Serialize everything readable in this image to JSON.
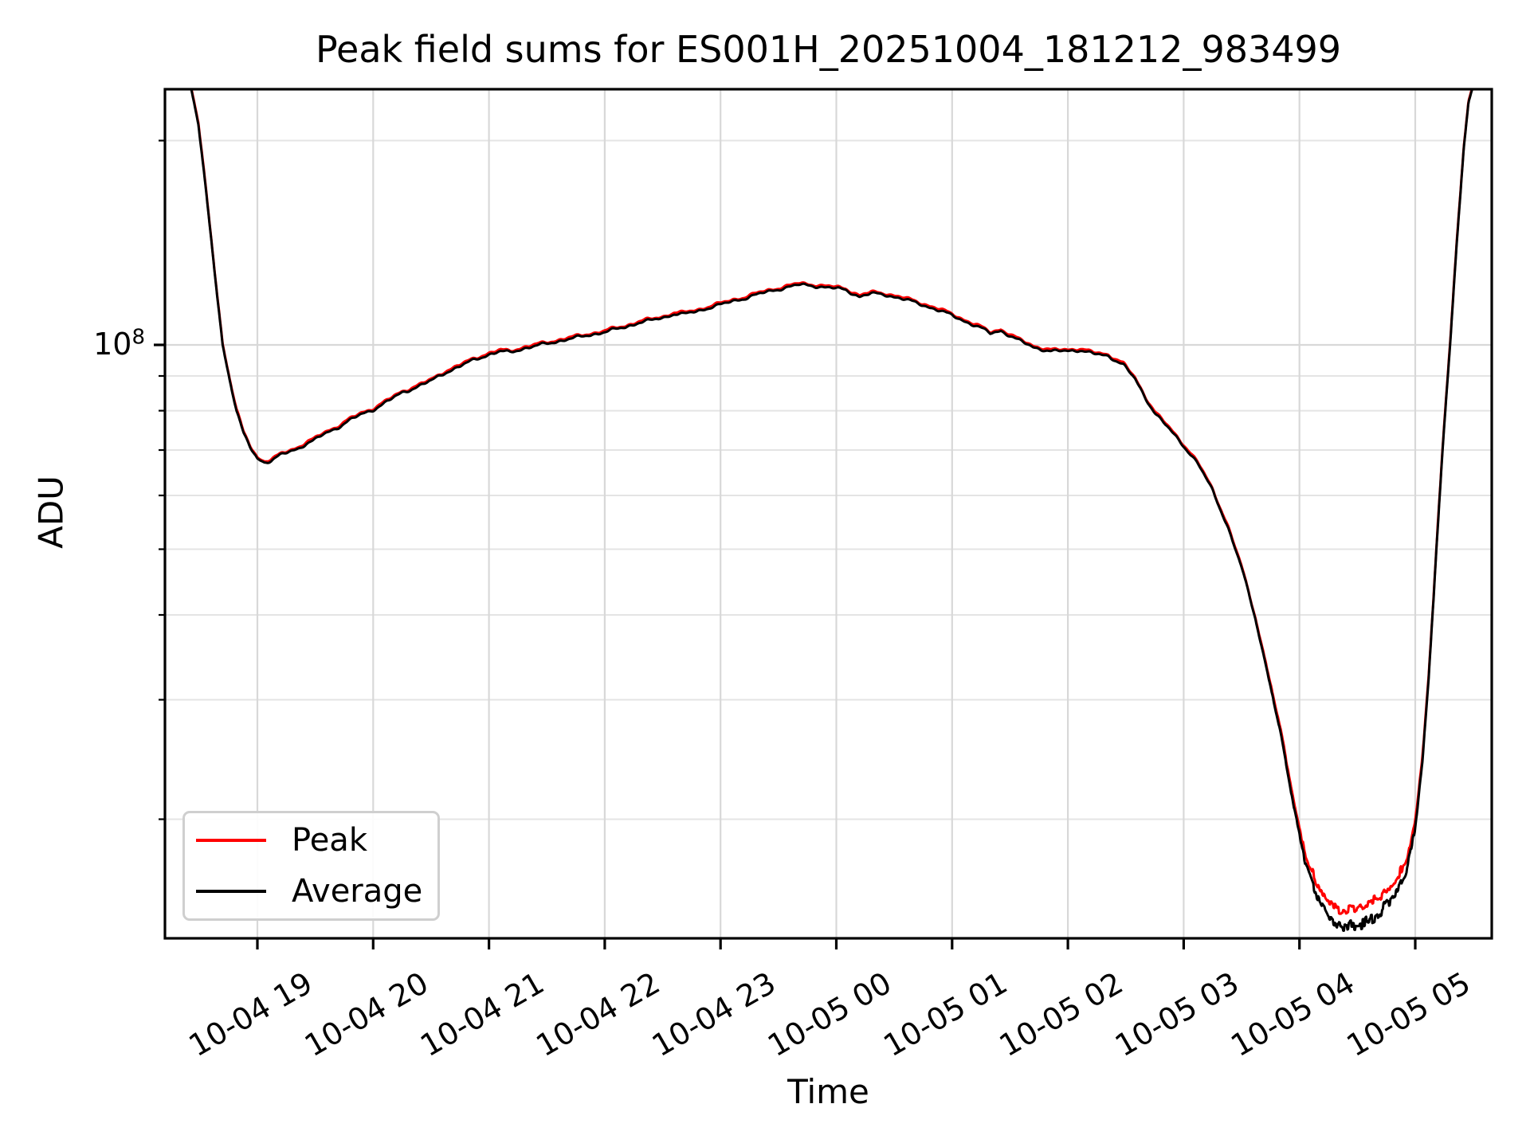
{
  "chart_data": {
    "type": "line",
    "title": "Peak field sums for ES001H_20251004_181212_983499",
    "xlabel": "Time",
    "ylabel": "ADU",
    "y_scale": "log",
    "grid": true,
    "y_tick": {
      "base": "10",
      "exp": "8",
      "value": 100000000.0
    },
    "y_major_gridlines": [
      100000000.0
    ],
    "y_minor_gridlines": [
      200000000.0,
      90000000.0,
      80000000.0,
      70000000.0,
      60000000.0,
      50000000.0,
      40000000.0,
      30000000.0,
      20000000.0
    ],
    "x_ticks": [
      {
        "label": "10-04 19",
        "t": 19
      },
      {
        "label": "10-04 20",
        "t": 20
      },
      {
        "label": "10-04 21",
        "t": 21
      },
      {
        "label": "10-04 22",
        "t": 22
      },
      {
        "label": "10-04 23",
        "t": 23
      },
      {
        "label": "10-05 00",
        "t": 24
      },
      {
        "label": "10-05 01",
        "t": 25
      },
      {
        "label": "10-05 02",
        "t": 26
      },
      {
        "label": "10-05 03",
        "t": 27
      },
      {
        "label": "10-05 04",
        "t": 28
      },
      {
        "label": "10-05 05",
        "t": 29
      }
    ],
    "x_range_hours": [
      18.202,
      29.66
    ],
    "y_range": [
      13360000.0,
      238000000.0
    ],
    "legend": {
      "position": "lower-left",
      "entries": [
        {
          "label": "Peak",
          "color": "#ff0000"
        },
        {
          "label": "Average",
          "color": "#000000"
        }
      ]
    },
    "series": [
      {
        "name": "Peak",
        "color": "#ff0000",
        "points": [
          [
            18.202,
            243200000.0
          ],
          [
            18.4,
            243200000.0
          ],
          [
            18.43,
            239200000.0
          ],
          [
            18.49,
            213100000.0
          ],
          [
            18.55,
            172900000.0
          ],
          [
            18.62,
            133700000.0
          ],
          [
            18.7,
            100500000.0
          ],
          [
            18.76,
            89400000.0
          ],
          [
            18.82,
            80400000.0
          ],
          [
            18.88,
            74400000.0
          ],
          [
            18.94,
            70900000.0
          ],
          [
            19.0,
            68300000.0
          ],
          [
            19.06,
            67500000.0
          ],
          [
            19.12,
            67800000.0
          ],
          [
            19.2,
            69100000.0
          ],
          [
            19.28,
            69900000.0
          ],
          [
            19.36,
            70900000.0
          ],
          [
            19.42,
            71900000.0
          ],
          [
            19.48,
            72600000.0
          ],
          [
            19.56,
            74000000.0
          ],
          [
            19.64,
            75200000.0
          ],
          [
            19.72,
            76400000.0
          ],
          [
            19.8,
            77900000.0
          ],
          [
            19.9,
            79400000.0
          ],
          [
            20.0,
            80700000.0
          ],
          [
            20.12,
            82900000.0
          ],
          [
            20.25,
            85400000.0
          ],
          [
            20.38,
            87200000.0
          ],
          [
            20.5,
            88900000.0
          ],
          [
            20.62,
            91500000.0
          ],
          [
            20.75,
            93500000.0
          ],
          [
            20.88,
            95700000.0
          ],
          [
            21.0,
            97300000.0
          ],
          [
            21.1,
            98300000.0
          ],
          [
            21.18,
            98000000.0
          ],
          [
            21.3,
            99300000.0
          ],
          [
            21.42,
            100300000.0
          ],
          [
            21.55,
            101300000.0
          ],
          [
            21.68,
            102500000.0
          ],
          [
            21.8,
            103300000.0
          ],
          [
            21.92,
            104300000.0
          ],
          [
            22.05,
            105500000.0
          ],
          [
            22.18,
            106700000.0
          ],
          [
            22.3,
            108500000.0
          ],
          [
            22.42,
            109300000.0
          ],
          [
            22.52,
            110300000.0
          ],
          [
            22.6,
            111800000.0
          ],
          [
            22.68,
            111600000.0
          ],
          [
            22.8,
            112600000.0
          ],
          [
            22.92,
            114400000.0
          ],
          [
            23.05,
            115800000.0
          ],
          [
            23.18,
            117400000.0
          ],
          [
            23.3,
            119100000.0
          ],
          [
            23.42,
            120400000.0
          ],
          [
            23.55,
            122000000.0
          ],
          [
            23.67,
            123200000.0
          ],
          [
            23.8,
            122800000.0
          ],
          [
            23.95,
            122000000.0
          ],
          [
            24.08,
            121100000.0
          ],
          [
            24.2,
            118400000.0
          ],
          [
            24.3,
            119600000.0
          ],
          [
            24.42,
            119200000.0
          ],
          [
            24.55,
            117800000.0
          ],
          [
            24.7,
            115800000.0
          ],
          [
            24.85,
            113600000.0
          ],
          [
            25.0,
            111100000.0
          ],
          [
            25.12,
            108700000.0
          ],
          [
            25.25,
            106300000.0
          ],
          [
            25.33,
            104500000.0
          ],
          [
            25.42,
            105500000.0
          ],
          [
            25.55,
            102500000.0
          ],
          [
            25.7,
            99800000.0
          ],
          [
            25.85,
            98300000.0
          ],
          [
            26.0,
            98500000.0
          ],
          [
            26.1,
            98800000.0
          ],
          [
            26.22,
            97500000.0
          ],
          [
            26.35,
            96800000.0
          ],
          [
            26.48,
            94000000.0
          ],
          [
            26.58,
            89400000.0
          ],
          [
            26.67,
            83900000.0
          ],
          [
            26.75,
            79900000.0
          ],
          [
            26.85,
            76400000.0
          ],
          [
            27.0,
            71400000.0
          ],
          [
            27.12,
            67300000.0
          ],
          [
            27.25,
            61300000.0
          ],
          [
            27.38,
            54300000.0
          ],
          [
            27.5,
            47200000.0
          ],
          [
            27.62,
            39700000.0
          ],
          [
            27.74,
            32200000.0
          ],
          [
            27.85,
            26300000.0
          ],
          [
            27.95,
            21300000.0
          ],
          [
            28.05,
            17600000.0
          ],
          [
            28.15,
            15800000.0
          ],
          [
            28.25,
            14900000.0
          ],
          [
            28.35,
            14500000.0
          ],
          [
            28.5,
            14500000.0
          ],
          [
            28.65,
            15000000.0
          ],
          [
            28.8,
            15700000.0
          ],
          [
            28.92,
            17100000.0
          ],
          [
            29.0,
            19900000.0
          ],
          [
            29.06,
            24200000.0
          ],
          [
            29.12,
            33200000.0
          ],
          [
            29.18,
            49200000.0
          ],
          [
            29.24,
            72400000.0
          ],
          [
            29.3,
            100500000.0
          ],
          [
            29.36,
            142700000.0
          ],
          [
            29.42,
            196000000.0
          ],
          [
            29.46,
            229100000.0
          ],
          [
            29.5,
            241200000.0
          ],
          [
            29.66,
            243200000.0
          ]
        ]
      },
      {
        "name": "Average",
        "color": "#000000",
        "points": [
          [
            18.202,
            242000000.0
          ],
          [
            18.4,
            242000000.0
          ],
          [
            18.43,
            238000000.0
          ],
          [
            18.49,
            212000000.0
          ],
          [
            18.55,
            172000000.0
          ],
          [
            18.62,
            133000000.0
          ],
          [
            18.7,
            100000000.0
          ],
          [
            18.76,
            89000000.0
          ],
          [
            18.82,
            80000000.0
          ],
          [
            18.88,
            74000000.0
          ],
          [
            18.94,
            70500000.0
          ],
          [
            19.0,
            68000000.0
          ],
          [
            19.06,
            67200000.0
          ],
          [
            19.12,
            67500000.0
          ],
          [
            19.2,
            68800000.0
          ],
          [
            19.28,
            69600000.0
          ],
          [
            19.36,
            70500000.0
          ],
          [
            19.42,
            71500000.0
          ],
          [
            19.48,
            72200000.0
          ],
          [
            19.56,
            73600000.0
          ],
          [
            19.64,
            74800000.0
          ],
          [
            19.72,
            76000000.0
          ],
          [
            19.8,
            77500000.0
          ],
          [
            19.9,
            79000000.0
          ],
          [
            20.0,
            80300000.0
          ],
          [
            20.12,
            82500000.0
          ],
          [
            20.25,
            85000000.0
          ],
          [
            20.38,
            86800000.0
          ],
          [
            20.5,
            88500000.0
          ],
          [
            20.62,
            91000000.0
          ],
          [
            20.75,
            93000000.0
          ],
          [
            20.88,
            95200000.0
          ],
          [
            21.0,
            96800000.0
          ],
          [
            21.1,
            97800000.0
          ],
          [
            21.18,
            97500000.0
          ],
          [
            21.3,
            98800000.0
          ],
          [
            21.42,
            99800000.0
          ],
          [
            21.55,
            100800000.0
          ],
          [
            21.68,
            102000000.0
          ],
          [
            21.8,
            102800000.0
          ],
          [
            21.92,
            103800000.0
          ],
          [
            22.05,
            105000000.0
          ],
          [
            22.18,
            106200000.0
          ],
          [
            22.3,
            108000000.0
          ],
          [
            22.42,
            108800000.0
          ],
          [
            22.52,
            109800000.0
          ],
          [
            22.6,
            111200000.0
          ],
          [
            22.68,
            111000000.0
          ],
          [
            22.8,
            112000000.0
          ],
          [
            22.92,
            113800000.0
          ],
          [
            23.05,
            115200000.0
          ],
          [
            23.18,
            116800000.0
          ],
          [
            23.3,
            118500000.0
          ],
          [
            23.42,
            119800000.0
          ],
          [
            23.55,
            121400000.0
          ],
          [
            23.67,
            122600000.0
          ],
          [
            23.8,
            122200000.0
          ],
          [
            23.95,
            121400000.0
          ],
          [
            24.08,
            120500000.0
          ],
          [
            24.2,
            117800000.0
          ],
          [
            24.3,
            119000000.0
          ],
          [
            24.42,
            118600000.0
          ],
          [
            24.55,
            117200000.0
          ],
          [
            24.7,
            115200000.0
          ],
          [
            24.85,
            113000000.0
          ],
          [
            25.0,
            110500000.0
          ],
          [
            25.12,
            108200000.0
          ],
          [
            25.25,
            105800000.0
          ],
          [
            25.33,
            104000000.0
          ],
          [
            25.42,
            105000000.0
          ],
          [
            25.55,
            102000000.0
          ],
          [
            25.7,
            99300000.0
          ],
          [
            25.85,
            97800000.0
          ],
          [
            26.0,
            98000000.0
          ],
          [
            26.1,
            98300000.0
          ],
          [
            26.22,
            97000000.0
          ],
          [
            26.35,
            96300000.0
          ],
          [
            26.48,
            93500000.0
          ],
          [
            26.58,
            89000000.0
          ],
          [
            26.67,
            83500000.0
          ],
          [
            26.75,
            79500000.0
          ],
          [
            26.85,
            76000000.0
          ],
          [
            27.0,
            71000000.0
          ],
          [
            27.12,
            67000000.0
          ],
          [
            27.25,
            61000000.0
          ],
          [
            27.38,
            54000000.0
          ],
          [
            27.5,
            47000000.0
          ],
          [
            27.62,
            39500000.0
          ],
          [
            27.74,
            32000000.0
          ],
          [
            27.85,
            26000000.0
          ],
          [
            27.95,
            21000000.0
          ],
          [
            28.05,
            17300000.0
          ],
          [
            28.15,
            15300000.0
          ],
          [
            28.25,
            14400000.0
          ],
          [
            28.35,
            13900000.0
          ],
          [
            28.5,
            13900000.0
          ],
          [
            28.65,
            14400000.0
          ],
          [
            28.8,
            15200000.0
          ],
          [
            28.92,
            16700000.0
          ],
          [
            29.0,
            19500000.0
          ],
          [
            29.06,
            24000000.0
          ],
          [
            29.12,
            33000000.0
          ],
          [
            29.18,
            49000000.0
          ],
          [
            29.24,
            72000000.0
          ],
          [
            29.3,
            100000000.0
          ],
          [
            29.36,
            142000000.0
          ],
          [
            29.42,
            195000000.0
          ],
          [
            29.46,
            228000000.0
          ],
          [
            29.5,
            240000000.0
          ],
          [
            29.66,
            242000000.0
          ]
        ]
      }
    ]
  }
}
